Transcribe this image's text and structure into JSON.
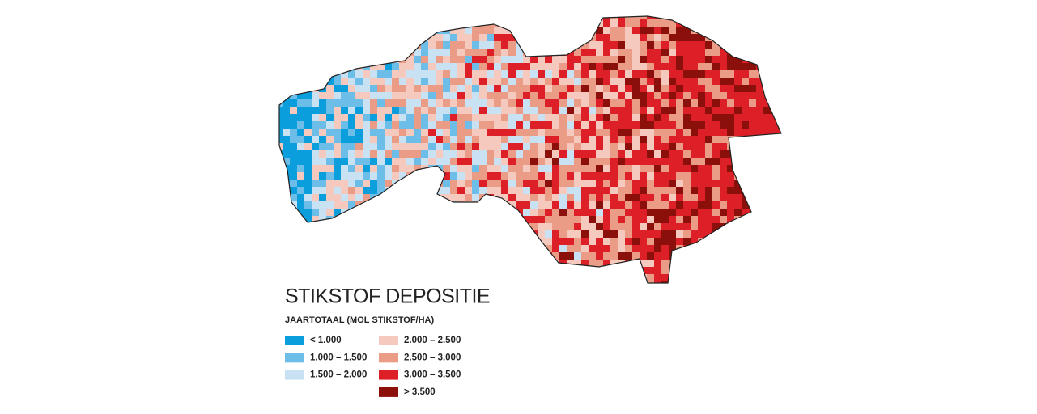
{
  "title": "STIKSTOF DEPOSITIE",
  "subtitle": "JAARTOTAAL (MOL STIKSTOF/HA)",
  "legend": [
    {
      "label": "< 1.000",
      "color": "#0a9fdc"
    },
    {
      "label": "1.000 – 1.500",
      "color": "#6dbde9"
    },
    {
      "label": "1.500 – 2.000",
      "color": "#c8e1f3"
    },
    {
      "label": "2.000 – 2.500",
      "color": "#f5c9be"
    },
    {
      "label": "2.500 – 3.000",
      "color": "#eb9c86"
    },
    {
      "label": "3.000 – 3.500",
      "color": "#dd1f27"
    },
    {
      "label": "> 3.500",
      "color": "#8b100b"
    }
  ]
}
